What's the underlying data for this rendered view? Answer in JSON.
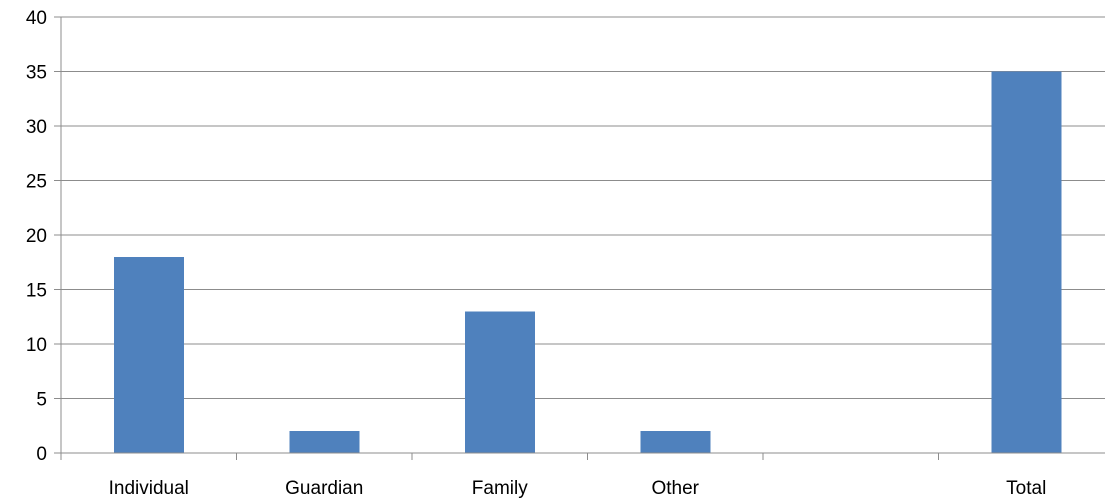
{
  "chart_data": {
    "type": "bar",
    "categories": [
      "Individual",
      "Guardian",
      "Family",
      "Other",
      "",
      "Total"
    ],
    "series": [
      {
        "values": [
          18,
          2,
          13,
          2,
          null,
          35
        ],
        "color": "#4f81bd"
      }
    ],
    "ylim": [
      0,
      40
    ],
    "y_ticks": [
      0,
      5,
      10,
      15,
      20,
      25,
      30,
      35,
      40
    ],
    "grid": true,
    "legend": "none",
    "axis_color": "#8c8c8c"
  }
}
